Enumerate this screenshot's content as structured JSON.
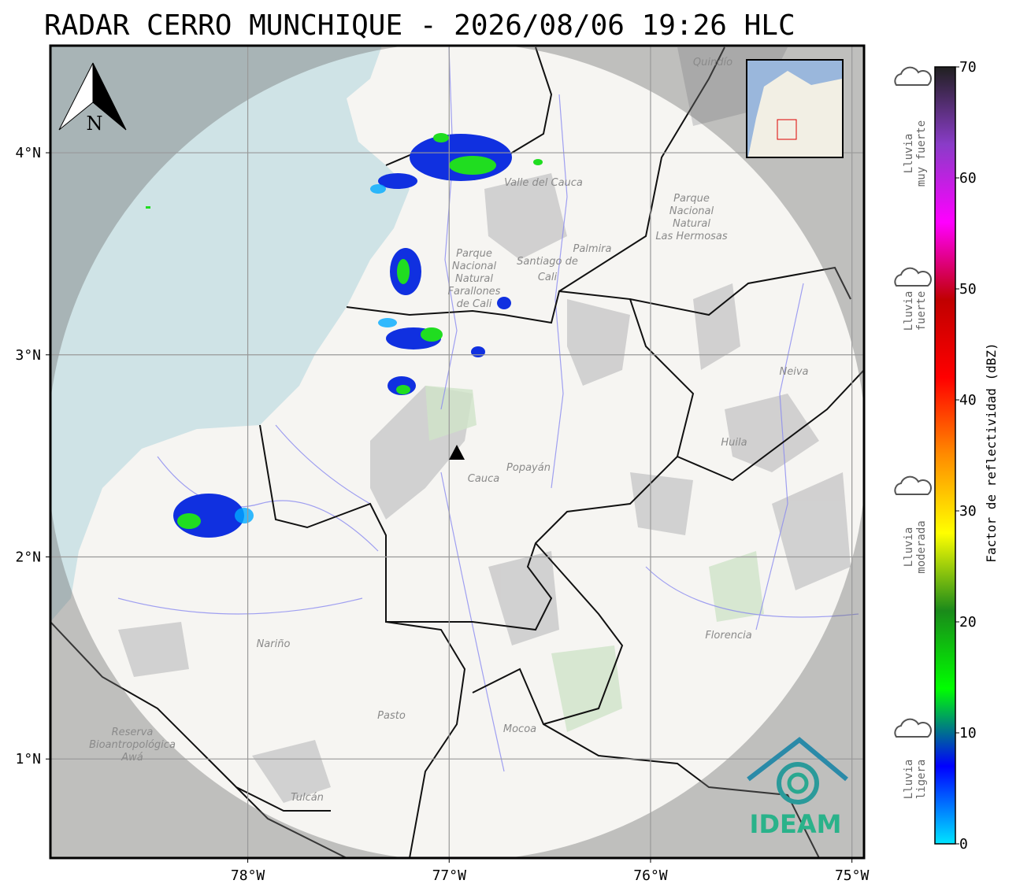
{
  "title": "RADAR CERRO MUNCHIQUE - 2026/08/06 19:26 HLC",
  "map": {
    "xlim": [
      -78.98,
      -74.94
    ],
    "ylim": [
      0.51,
      4.53
    ],
    "xticks": [
      {
        "value": -78,
        "label": "78°W"
      },
      {
        "value": -77,
        "label": "77°W"
      },
      {
        "value": -76,
        "label": "76°W"
      },
      {
        "value": -75,
        "label": "75°W"
      }
    ],
    "yticks": [
      {
        "value": 1,
        "label": "1°N"
      },
      {
        "value": 2,
        "label": "2°N"
      },
      {
        "value": 3,
        "label": "3°N"
      },
      {
        "value": 4,
        "label": "4°N"
      }
    ],
    "north": "N",
    "logo": "IDEAM",
    "places": [
      {
        "lines": [
          "Quindío"
        ]
      },
      {
        "lines": [
          "Valle del Cauca"
        ]
      },
      {
        "lines": [
          "Santiago de",
          "Cali"
        ]
      },
      {
        "lines": [
          "Palmira"
        ]
      },
      {
        "lines": [
          "Parque",
          "Nacional",
          "Natural",
          "Farallones",
          "de Cali"
        ]
      },
      {
        "lines": [
          "Parque",
          "Nacional",
          "Natural",
          "Las Hermosas"
        ]
      },
      {
        "lines": [
          "Neiva"
        ]
      },
      {
        "lines": [
          "Huila"
        ]
      },
      {
        "lines": [
          "Popayán"
        ]
      },
      {
        "lines": [
          "Cauca"
        ]
      },
      {
        "lines": [
          "Nariño"
        ]
      },
      {
        "lines": [
          "Pasto"
        ]
      },
      {
        "lines": [
          "Mocoa"
        ]
      },
      {
        "lines": [
          "Florencia"
        ]
      },
      {
        "lines": [
          "Reserva",
          "Bioantropológica",
          "Awá"
        ]
      },
      {
        "lines": [
          "Tulcán"
        ]
      }
    ]
  },
  "colorbar": {
    "label": "Factor de reflectividad (dBZ)",
    "lim": [
      0,
      70
    ],
    "ticks": [
      0,
      10,
      20,
      30,
      40,
      50,
      60,
      70
    ],
    "colors": [
      "#00e5ff",
      "#0000ff",
      "#00ff00",
      "#1a8a1a",
      "#ffff00",
      "#ff8c00",
      "#ff0000",
      "#c00000",
      "#ff00ff",
      "#8a3cc8",
      "#202020"
    ]
  },
  "rain_legend": [
    {
      "lines": [
        "Lluvia",
        "muy fuerte"
      ]
    },
    {
      "lines": [
        "Lluvia",
        "fuerte"
      ]
    },
    {
      "lines": [
        "Lluvia",
        "moderada"
      ]
    },
    {
      "lines": [
        "Lluvia",
        "ligera"
      ]
    }
  ]
}
